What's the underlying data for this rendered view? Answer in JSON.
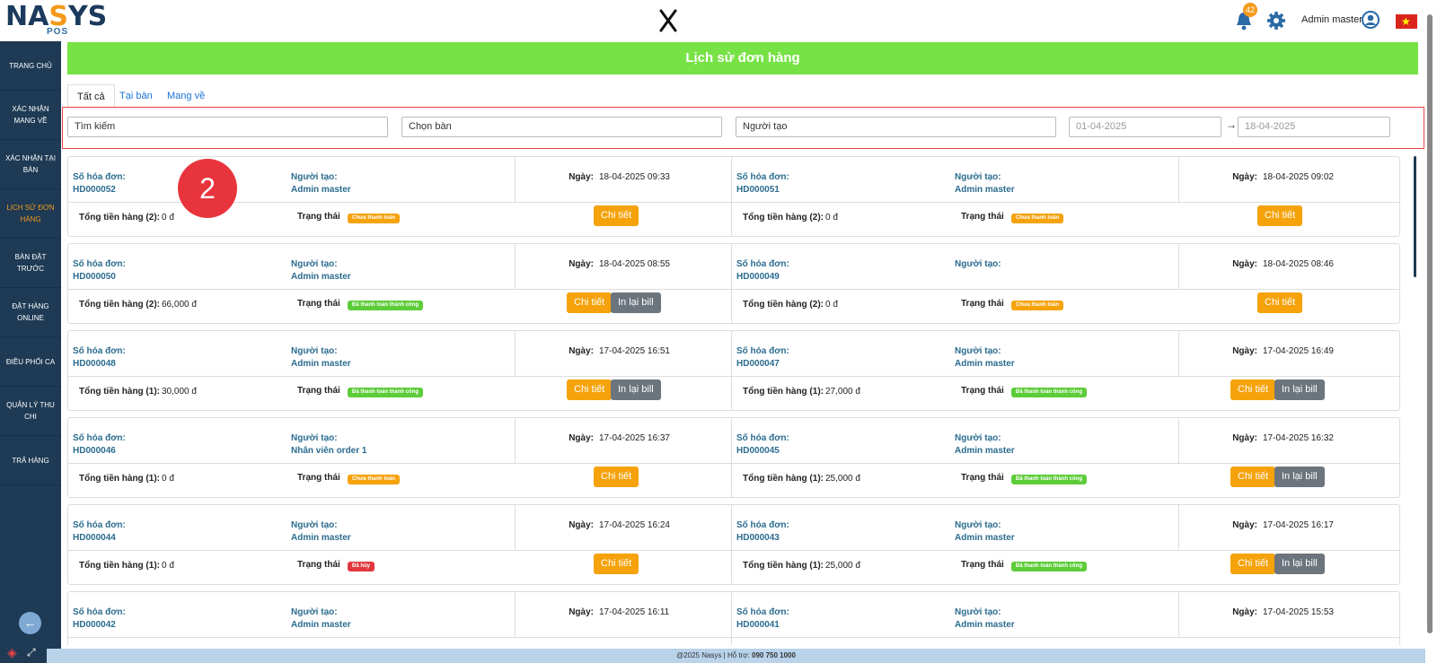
{
  "app": {
    "logo_main": "NASYS",
    "logo_sub": "POS",
    "notifications": "42",
    "user": "Admin master"
  },
  "sidebar": {
    "items": [
      {
        "label": "TRANG CHỦ"
      },
      {
        "label": "XÁC NHẬN MANG VỀ"
      },
      {
        "label": "XÁC NHẬN TẠI BÀN"
      },
      {
        "label": "LỊCH SỬ ĐƠN HÀNG"
      },
      {
        "label": "BÀN ĐẶT TRƯỚC"
      },
      {
        "label": "ĐẶT HÀNG ONLINE"
      },
      {
        "label": "ĐIỀU PHỐI CA"
      },
      {
        "label": "QUẢN LÝ THU CHI"
      },
      {
        "label": "TRẢ HÀNG"
      }
    ]
  },
  "page": {
    "title": "Lịch sử đơn hàng"
  },
  "tabs": [
    {
      "label": "Tất cả"
    },
    {
      "label": "Tại bàn"
    },
    {
      "label": "Mang về"
    }
  ],
  "filters": {
    "search": "Tìm kiếm",
    "table": "Chọn bàn",
    "creator": "Người tạo",
    "from": "01-04-2025",
    "to": "18-04-2025"
  },
  "labels": {
    "invoice": "Số hóa đơn:",
    "creator": "Người tạo:",
    "date": "Ngày:",
    "status": "Trạng thái",
    "detail": "Chi tiết",
    "reprint": "In lại bill"
  },
  "orders": [
    {
      "id": "HD000052",
      "creator": "Admin master",
      "date": "18-04-2025 09:33",
      "total_label": "Tổng tiền hàng (2):",
      "total": "0 đ",
      "status": "Chưa thanh toán",
      "status_color": "orange",
      "reprint": false
    },
    {
      "id": "HD000051",
      "creator": "Admin master",
      "date": "18-04-2025 09:02",
      "total_label": "Tổng tiền hàng (2):",
      "total": "0 đ",
      "status": "Chưa thanh toán",
      "status_color": "orange",
      "reprint": false
    },
    {
      "id": "HD000050",
      "creator": "Admin master",
      "date": "18-04-2025 08:55",
      "total_label": "Tổng tiền hàng (2):",
      "total": "66,000 đ",
      "status": "Đã thanh toán thành công",
      "status_color": "green",
      "reprint": true
    },
    {
      "id": "HD000049",
      "creator": "",
      "date": "18-04-2025 08:46",
      "total_label": "Tổng tiền hàng (2):",
      "total": "0 đ",
      "status": "Chưa thanh toán",
      "status_color": "orange",
      "reprint": false
    },
    {
      "id": "HD000048",
      "creator": "Admin master",
      "date": "17-04-2025 16:51",
      "total_label": "Tổng tiền hàng (1):",
      "total": "30,000 đ",
      "status": "Đã thanh toán thành công",
      "status_color": "green",
      "reprint": true
    },
    {
      "id": "HD000047",
      "creator": "Admin master",
      "date": "17-04-2025 16:49",
      "total_label": "Tổng tiền hàng (1):",
      "total": "27,000 đ",
      "status": "Đã thanh toán thành công",
      "status_color": "green",
      "reprint": true
    },
    {
      "id": "HD000046",
      "creator": "Nhân viên order 1",
      "date": "17-04-2025 16:37",
      "total_label": "Tổng tiền hàng (1):",
      "total": "0 đ",
      "status": "Chưa thanh toán",
      "status_color": "orange",
      "reprint": false
    },
    {
      "id": "HD000045",
      "creator": "Admin master",
      "date": "17-04-2025 16:32",
      "total_label": "Tổng tiền hàng (1):",
      "total": "25,000 đ",
      "status": "Đã thanh toán thành công",
      "status_color": "green",
      "reprint": true
    },
    {
      "id": "HD000044",
      "creator": "Admin master",
      "date": "17-04-2025 16:24",
      "total_label": "Tổng tiền hàng (1):",
      "total": "0 đ",
      "status": "Đã hủy",
      "status_color": "red",
      "reprint": false
    },
    {
      "id": "HD000043",
      "creator": "Admin master",
      "date": "17-04-2025 16:17",
      "total_label": "Tổng tiền hàng (1):",
      "total": "25,000 đ",
      "status": "Đã thanh toán thành công",
      "status_color": "green",
      "reprint": true
    },
    {
      "id": "HD000042",
      "creator": "Admin master",
      "date": "17-04-2025 16:11",
      "total_label": "",
      "total": "",
      "status": "",
      "status_color": "orange",
      "reprint": false
    },
    {
      "id": "HD000041",
      "creator": "Admin master",
      "date": "17-04-2025 15:53",
      "total_label": "",
      "total": "",
      "status": "",
      "status_color": "orange",
      "reprint": false
    }
  ],
  "annotation": {
    "number": "2"
  },
  "footer": {
    "text": "@2025 Nasys | Hỗ trợ:",
    "phone": "090 750 1000"
  },
  "colors": {
    "sidebar": "#1e3a54",
    "accent": "#f39a1b",
    "header": "#77e246",
    "link": "#2b6c8f"
  }
}
